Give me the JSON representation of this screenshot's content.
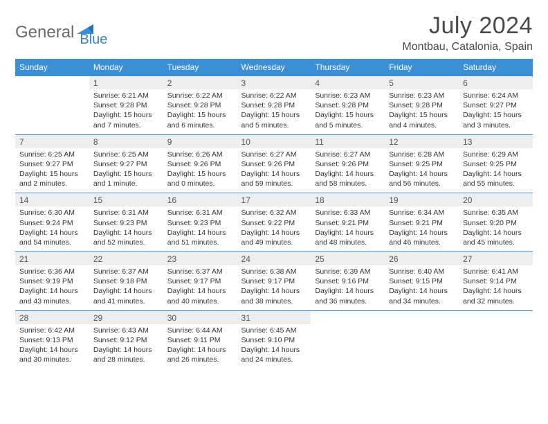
{
  "logo": {
    "part1": "General",
    "part2": "Blue"
  },
  "title": "July 2024",
  "location": "Montbau, Catalonia, Spain",
  "colors": {
    "header_bg": "#3b8fd4",
    "header_text": "#ffffff",
    "daynum_bg": "#eeeeee",
    "rule": "#3b8fd4",
    "logo_gray": "#6a6a6a",
    "logo_blue": "#3b7fc4"
  },
  "weekdays": [
    "Sunday",
    "Monday",
    "Tuesday",
    "Wednesday",
    "Thursday",
    "Friday",
    "Saturday"
  ],
  "weeks": [
    [
      null,
      {
        "n": "1",
        "sr": "6:21 AM",
        "ss": "9:28 PM",
        "dl": "15 hours and 7 minutes."
      },
      {
        "n": "2",
        "sr": "6:22 AM",
        "ss": "9:28 PM",
        "dl": "15 hours and 6 minutes."
      },
      {
        "n": "3",
        "sr": "6:22 AM",
        "ss": "9:28 PM",
        "dl": "15 hours and 5 minutes."
      },
      {
        "n": "4",
        "sr": "6:23 AM",
        "ss": "9:28 PM",
        "dl": "15 hours and 5 minutes."
      },
      {
        "n": "5",
        "sr": "6:23 AM",
        "ss": "9:28 PM",
        "dl": "15 hours and 4 minutes."
      },
      {
        "n": "6",
        "sr": "6:24 AM",
        "ss": "9:27 PM",
        "dl": "15 hours and 3 minutes."
      }
    ],
    [
      {
        "n": "7",
        "sr": "6:25 AM",
        "ss": "9:27 PM",
        "dl": "15 hours and 2 minutes."
      },
      {
        "n": "8",
        "sr": "6:25 AM",
        "ss": "9:27 PM",
        "dl": "15 hours and 1 minute."
      },
      {
        "n": "9",
        "sr": "6:26 AM",
        "ss": "9:26 PM",
        "dl": "15 hours and 0 minutes."
      },
      {
        "n": "10",
        "sr": "6:27 AM",
        "ss": "9:26 PM",
        "dl": "14 hours and 59 minutes."
      },
      {
        "n": "11",
        "sr": "6:27 AM",
        "ss": "9:26 PM",
        "dl": "14 hours and 58 minutes."
      },
      {
        "n": "12",
        "sr": "6:28 AM",
        "ss": "9:25 PM",
        "dl": "14 hours and 56 minutes."
      },
      {
        "n": "13",
        "sr": "6:29 AM",
        "ss": "9:25 PM",
        "dl": "14 hours and 55 minutes."
      }
    ],
    [
      {
        "n": "14",
        "sr": "6:30 AM",
        "ss": "9:24 PM",
        "dl": "14 hours and 54 minutes."
      },
      {
        "n": "15",
        "sr": "6:31 AM",
        "ss": "9:23 PM",
        "dl": "14 hours and 52 minutes."
      },
      {
        "n": "16",
        "sr": "6:31 AM",
        "ss": "9:23 PM",
        "dl": "14 hours and 51 minutes."
      },
      {
        "n": "17",
        "sr": "6:32 AM",
        "ss": "9:22 PM",
        "dl": "14 hours and 49 minutes."
      },
      {
        "n": "18",
        "sr": "6:33 AM",
        "ss": "9:21 PM",
        "dl": "14 hours and 48 minutes."
      },
      {
        "n": "19",
        "sr": "6:34 AM",
        "ss": "9:21 PM",
        "dl": "14 hours and 46 minutes."
      },
      {
        "n": "20",
        "sr": "6:35 AM",
        "ss": "9:20 PM",
        "dl": "14 hours and 45 minutes."
      }
    ],
    [
      {
        "n": "21",
        "sr": "6:36 AM",
        "ss": "9:19 PM",
        "dl": "14 hours and 43 minutes."
      },
      {
        "n": "22",
        "sr": "6:37 AM",
        "ss": "9:18 PM",
        "dl": "14 hours and 41 minutes."
      },
      {
        "n": "23",
        "sr": "6:37 AM",
        "ss": "9:17 PM",
        "dl": "14 hours and 40 minutes."
      },
      {
        "n": "24",
        "sr": "6:38 AM",
        "ss": "9:17 PM",
        "dl": "14 hours and 38 minutes."
      },
      {
        "n": "25",
        "sr": "6:39 AM",
        "ss": "9:16 PM",
        "dl": "14 hours and 36 minutes."
      },
      {
        "n": "26",
        "sr": "6:40 AM",
        "ss": "9:15 PM",
        "dl": "14 hours and 34 minutes."
      },
      {
        "n": "27",
        "sr": "6:41 AM",
        "ss": "9:14 PM",
        "dl": "14 hours and 32 minutes."
      }
    ],
    [
      {
        "n": "28",
        "sr": "6:42 AM",
        "ss": "9:13 PM",
        "dl": "14 hours and 30 minutes."
      },
      {
        "n": "29",
        "sr": "6:43 AM",
        "ss": "9:12 PM",
        "dl": "14 hours and 28 minutes."
      },
      {
        "n": "30",
        "sr": "6:44 AM",
        "ss": "9:11 PM",
        "dl": "14 hours and 26 minutes."
      },
      {
        "n": "31",
        "sr": "6:45 AM",
        "ss": "9:10 PM",
        "dl": "14 hours and 24 minutes."
      },
      null,
      null,
      null
    ]
  ],
  "labels": {
    "sunrise": "Sunrise: ",
    "sunset": "Sunset: ",
    "daylight": "Daylight: "
  }
}
